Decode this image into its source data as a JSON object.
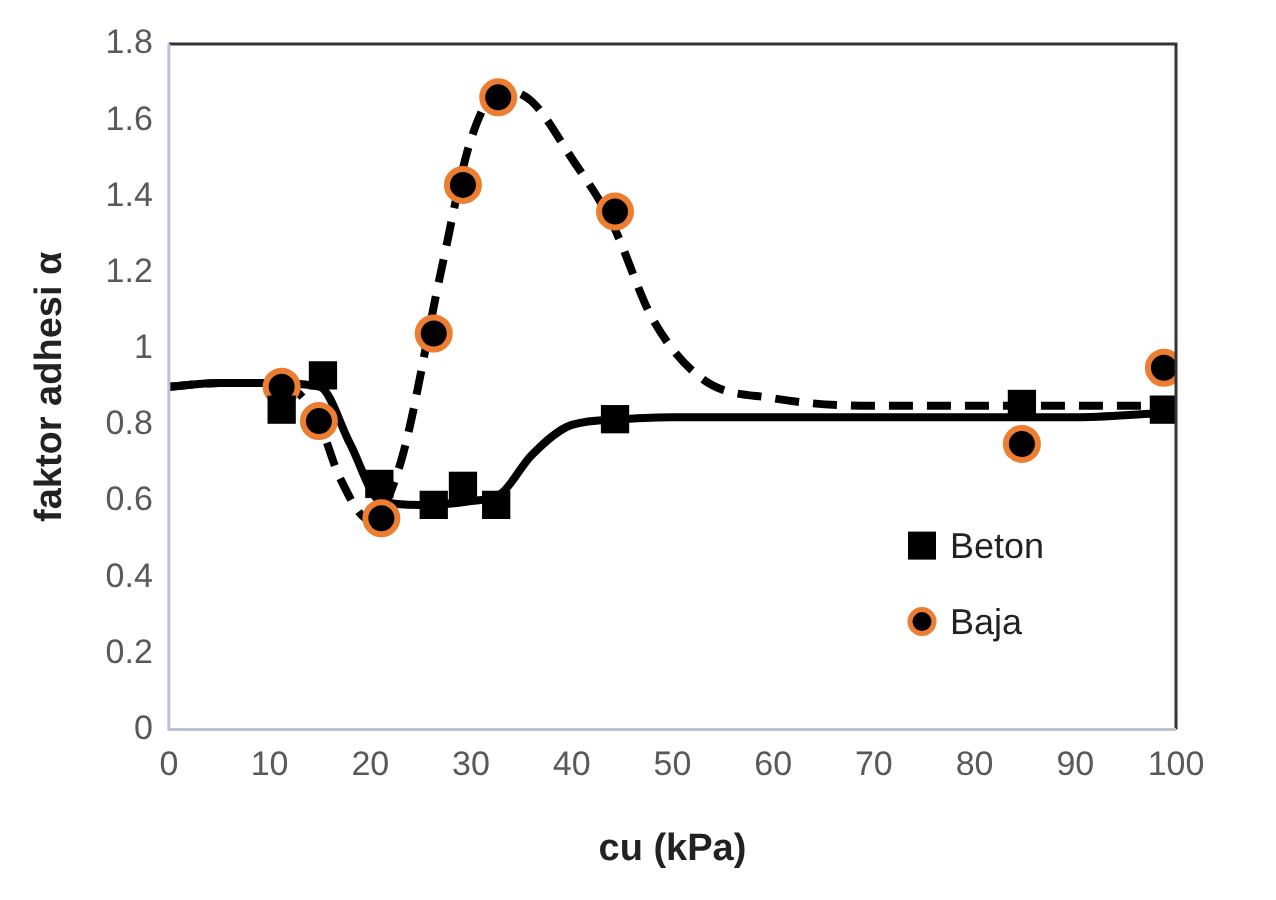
{
  "chart_data": {
    "type": "scatter",
    "xlabel": "cu (kPa)",
    "ylabel": "faktor adhesi α",
    "xlim": [
      0,
      100
    ],
    "xticks": [
      0,
      10,
      20,
      30,
      40,
      50,
      60,
      70,
      80,
      90,
      100
    ],
    "ylim": [
      0,
      1.8
    ],
    "yticks": [
      0,
      0.2,
      0.4,
      0.6,
      0.8,
      1,
      1.2,
      1.4,
      1.6,
      1.8
    ],
    "grid": false,
    "legend": "bottom right",
    "series": [
      {
        "type": "line",
        "color": "#000000",
        "line_style": "solid",
        "marker": "none",
        "x": [
          0,
          5,
          10,
          15,
          18,
          21,
          25,
          30,
          33,
          36,
          40,
          45,
          50,
          60,
          70,
          80,
          90,
          98
        ],
        "values": [
          0.9,
          0.91,
          0.91,
          0.9,
          0.75,
          0.6,
          0.59,
          0.6,
          0.62,
          0.72,
          0.8,
          0.815,
          0.82,
          0.82,
          0.82,
          0.82,
          0.82,
          0.83
        ]
      },
      {
        "type": "line",
        "color": "#000000",
        "line_style": "dashed",
        "marker": "none",
        "x": [
          0,
          5,
          10,
          13,
          15,
          17,
          20,
          23,
          27,
          30,
          33,
          36,
          40,
          44,
          48,
          53,
          60,
          70,
          80,
          90,
          98
        ],
        "values": [
          0.9,
          0.91,
          0.91,
          0.88,
          0.8,
          0.66,
          0.55,
          0.7,
          1.2,
          1.55,
          1.68,
          1.65,
          1.5,
          1.33,
          1.08,
          0.92,
          0.87,
          0.85,
          0.85,
          0.85,
          0.85
        ]
      },
      {
        "name": "Beton",
        "type": "scatter",
        "color": "#000000",
        "marker": "square",
        "x": [
          11.2,
          15.3,
          20.9,
          26.3,
          29.2,
          32.5,
          44.3,
          84.7,
          98.8
        ],
        "values": [
          0.84,
          0.93,
          0.645,
          0.59,
          0.64,
          0.59,
          0.815,
          0.855,
          0.84
        ]
      },
      {
        "name": "Baja",
        "type": "scatter",
        "color": "#ed7d31",
        "marker": "circle",
        "x": [
          11.2,
          14.9,
          21.1,
          26.3,
          29.2,
          32.7,
          44.3,
          84.7,
          98.8
        ],
        "values": [
          0.9,
          0.81,
          0.555,
          1.04,
          1.43,
          1.66,
          1.36,
          0.75,
          0.95
        ]
      }
    ]
  }
}
